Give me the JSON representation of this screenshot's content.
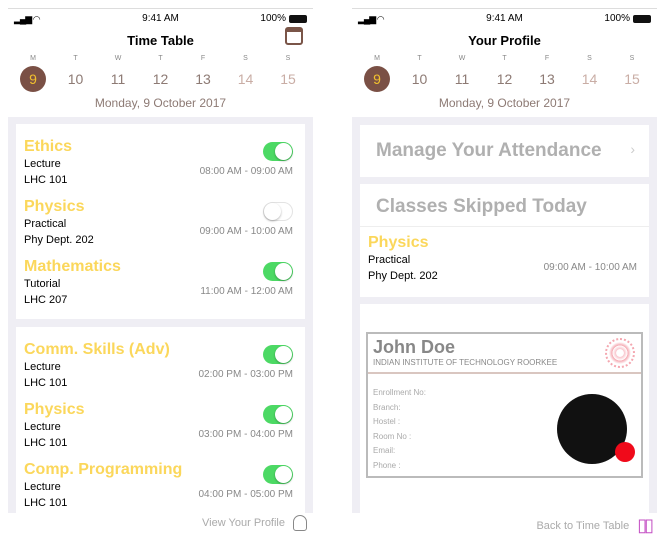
{
  "status": {
    "time": "9:41 AM",
    "battery": "100%"
  },
  "week": [
    {
      "l": "M",
      "n": "9"
    },
    {
      "l": "T",
      "n": "10"
    },
    {
      "l": "W",
      "n": "11"
    },
    {
      "l": "T",
      "n": "12"
    },
    {
      "l": "F",
      "n": "13"
    },
    {
      "l": "S",
      "n": "14"
    },
    {
      "l": "S",
      "n": "15"
    }
  ],
  "date": "Monday, 9 October 2017",
  "colors": {
    "accent": "#7a5045",
    "subject": "#fbd75b",
    "toggle_on": "#4cd964"
  },
  "timetable": {
    "title": "Time Table",
    "cards": [
      [
        {
          "subject": "Ethics",
          "type": "Lecture",
          "room": "LHC 101",
          "time": "08:00 AM - 09:00 AM",
          "on": true
        },
        {
          "subject": "Physics",
          "type": "Practical",
          "room": "Phy Dept. 202",
          "time": "09:00 AM - 10:00 AM",
          "on": false
        },
        {
          "subject": "Mathematics",
          "type": "Tutorial",
          "room": "LHC 207",
          "time": "11:00 AM - 12:00 AM",
          "on": true
        }
      ],
      [
        {
          "subject": "Comm. Skills (Adv)",
          "type": "Lecture",
          "room": "LHC 101",
          "time": "02:00 PM - 03:00 PM",
          "on": true
        },
        {
          "subject": "Physics",
          "type": "Lecture",
          "room": "LHC 101",
          "time": "03:00 PM - 04:00 PM",
          "on": true
        },
        {
          "subject": "Comp. Programming",
          "type": "Lecture",
          "room": "LHC 101",
          "time": "04:00 PM - 05:00 PM",
          "on": true
        }
      ]
    ],
    "footer": "View Your Profile"
  },
  "profile": {
    "title": "Your Profile",
    "manage": "Manage Your Attendance",
    "skipped_title": "Classes Skipped Today",
    "skipped": {
      "subject": "Physics",
      "type": "Practical",
      "room": "Phy Dept. 202",
      "time": "09:00 AM - 10:00 AM"
    },
    "id": {
      "name": "John Doe",
      "institute": "INDIAN INSTITUTE OF TECHNOLOGY ROORKEE",
      "fields": [
        "Enrollment No:",
        "Branch:",
        "Hostel :",
        "Room No :",
        "Email:",
        "Phone :"
      ]
    },
    "footer": "Back to Time Table"
  }
}
